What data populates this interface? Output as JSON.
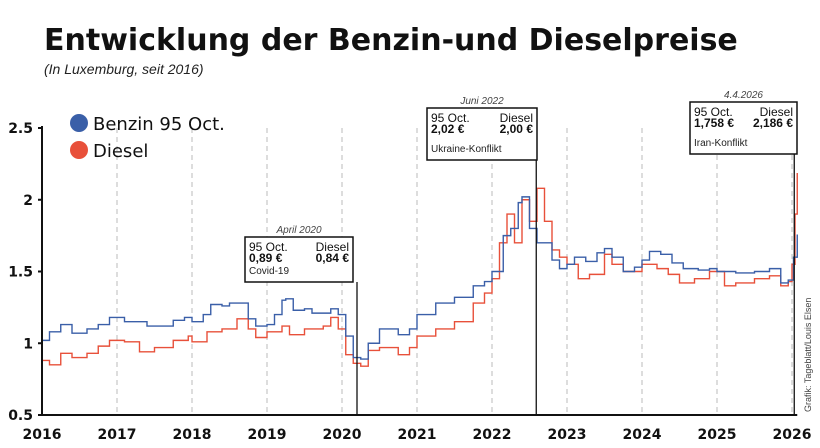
{
  "chart_data": {
    "type": "line",
    "title": "Entwicklung der Benzin-und Dieselpreise",
    "subtitle": "(In Luxemburg, seit 2016)",
    "xlabel": "",
    "ylabel": "",
    "xlim": [
      2016,
      2026.07
    ],
    "ylim": [
      0.5,
      2.5
    ],
    "x_ticks": [
      "2016",
      "2017",
      "2018",
      "2019",
      "2020",
      "2021",
      "2022",
      "2023",
      "2024",
      "2025",
      "2026"
    ],
    "y_ticks": [
      "0.5",
      "1",
      "1.5",
      "2",
      "2.5"
    ],
    "grid": "vertical dashed at year ticks",
    "legend_position": "top-left",
    "colors": {
      "benzin": "#3a5fa8",
      "diesel": "#e8503a"
    },
    "series": [
      {
        "name": "Benzin 95 Oct.",
        "color": "#3a5fa8",
        "x": [
          2016.0,
          2016.1,
          2016.25,
          2016.4,
          2016.6,
          2016.75,
          2016.9,
          2017.0,
          2017.1,
          2017.25,
          2017.4,
          2017.6,
          2017.75,
          2017.9,
          2018.0,
          2018.15,
          2018.25,
          2018.4,
          2018.5,
          2018.6,
          2018.75,
          2018.85,
          2019.0,
          2019.1,
          2019.2,
          2019.25,
          2019.35,
          2019.5,
          2019.6,
          2019.75,
          2019.85,
          2019.95,
          2020.05,
          2020.15,
          2020.25,
          2020.35,
          2020.5,
          2020.75,
          2020.9,
          2021.0,
          2021.25,
          2021.5,
          2021.75,
          2021.9,
          2022.0,
          2022.15,
          2022.25,
          2022.35,
          2022.4,
          2022.5,
          2022.6,
          2022.7,
          2022.8,
          2022.9,
          2023.0,
          2023.1,
          2023.25,
          2023.4,
          2023.5,
          2023.6,
          2023.75,
          2023.9,
          2024.0,
          2024.1,
          2024.25,
          2024.4,
          2024.55,
          2024.75,
          2024.9,
          2025.0,
          2025.25,
          2025.5,
          2025.7,
          2025.85,
          2025.95,
          2026.02,
          2026.07
        ],
        "y": [
          1.02,
          1.08,
          1.13,
          1.07,
          1.1,
          1.13,
          1.18,
          1.18,
          1.15,
          1.15,
          1.12,
          1.12,
          1.16,
          1.18,
          1.15,
          1.2,
          1.27,
          1.26,
          1.28,
          1.28,
          1.17,
          1.12,
          1.13,
          1.2,
          1.3,
          1.31,
          1.23,
          1.24,
          1.21,
          1.21,
          1.24,
          1.2,
          1.05,
          0.9,
          0.89,
          1.0,
          1.1,
          1.06,
          1.1,
          1.2,
          1.28,
          1.32,
          1.4,
          1.43,
          1.5,
          1.75,
          1.8,
          1.98,
          2.02,
          1.8,
          1.7,
          1.7,
          1.58,
          1.52,
          1.55,
          1.6,
          1.57,
          1.63,
          1.66,
          1.6,
          1.5,
          1.53,
          1.58,
          1.64,
          1.62,
          1.56,
          1.52,
          1.51,
          1.52,
          1.5,
          1.49,
          1.5,
          1.52,
          1.42,
          1.44,
          1.6,
          1.758
        ]
      },
      {
        "name": "Diesel",
        "color": "#e8503a",
        "x": [
          2016.0,
          2016.1,
          2016.25,
          2016.4,
          2016.6,
          2016.75,
          2016.9,
          2017.1,
          2017.3,
          2017.5,
          2017.75,
          2017.95,
          2018.0,
          2018.2,
          2018.4,
          2018.6,
          2018.75,
          2018.85,
          2019.0,
          2019.2,
          2019.3,
          2019.5,
          2019.75,
          2019.85,
          2019.95,
          2020.05,
          2020.15,
          2020.25,
          2020.35,
          2020.5,
          2020.75,
          2020.9,
          2021.0,
          2021.25,
          2021.5,
          2021.75,
          2021.9,
          2022.0,
          2022.1,
          2022.2,
          2022.3,
          2022.4,
          2022.5,
          2022.6,
          2022.7,
          2022.8,
          2022.9,
          2023.0,
          2023.15,
          2023.3,
          2023.5,
          2023.6,
          2023.75,
          2023.9,
          2024.0,
          2024.2,
          2024.35,
          2024.5,
          2024.7,
          2024.9,
          2025.1,
          2025.25,
          2025.5,
          2025.7,
          2025.85,
          2025.95,
          2026.0,
          2026.04,
          2026.07
        ],
        "y": [
          0.88,
          0.85,
          0.93,
          0.9,
          0.93,
          0.98,
          1.02,
          1.01,
          0.94,
          0.97,
          1.02,
          1.05,
          1.01,
          1.08,
          1.1,
          1.17,
          1.1,
          1.04,
          1.08,
          1.12,
          1.06,
          1.1,
          1.12,
          1.18,
          1.1,
          0.92,
          0.86,
          0.84,
          0.95,
          0.97,
          0.92,
          0.97,
          1.05,
          1.1,
          1.15,
          1.28,
          1.35,
          1.45,
          1.7,
          1.9,
          1.7,
          2.0,
          1.85,
          2.08,
          1.85,
          1.65,
          1.6,
          1.55,
          1.45,
          1.48,
          1.62,
          1.55,
          1.5,
          1.5,
          1.55,
          1.52,
          1.48,
          1.42,
          1.45,
          1.5,
          1.4,
          1.42,
          1.45,
          1.47,
          1.4,
          1.43,
          1.55,
          1.9,
          2.186
        ]
      }
    ],
    "annotations": [
      {
        "x": 2020.2,
        "date": "April 2020",
        "benzin_label": "95 Oct.",
        "diesel_label": "Diesel",
        "benzin_value": "0,89 €",
        "diesel_value": "0,84 €",
        "event": "Covid-19"
      },
      {
        "x": 2022.59,
        "date": "Juni 2022",
        "benzin_label": "95 Oct.",
        "diesel_label": "Diesel",
        "benzin_value": "2,02 €",
        "diesel_value": "2,00 €",
        "event": "Ukraine-Konflikt"
      },
      {
        "x": 2026.03,
        "date": "4.4.2026",
        "benzin_label": "95 Oct.",
        "diesel_label": "Diesel",
        "benzin_value": "1,758 €",
        "diesel_value": "2,186 €",
        "event": "Iran-Konflikt"
      }
    ],
    "source": "Grafik: Tageblatt/Louis Elsen"
  }
}
